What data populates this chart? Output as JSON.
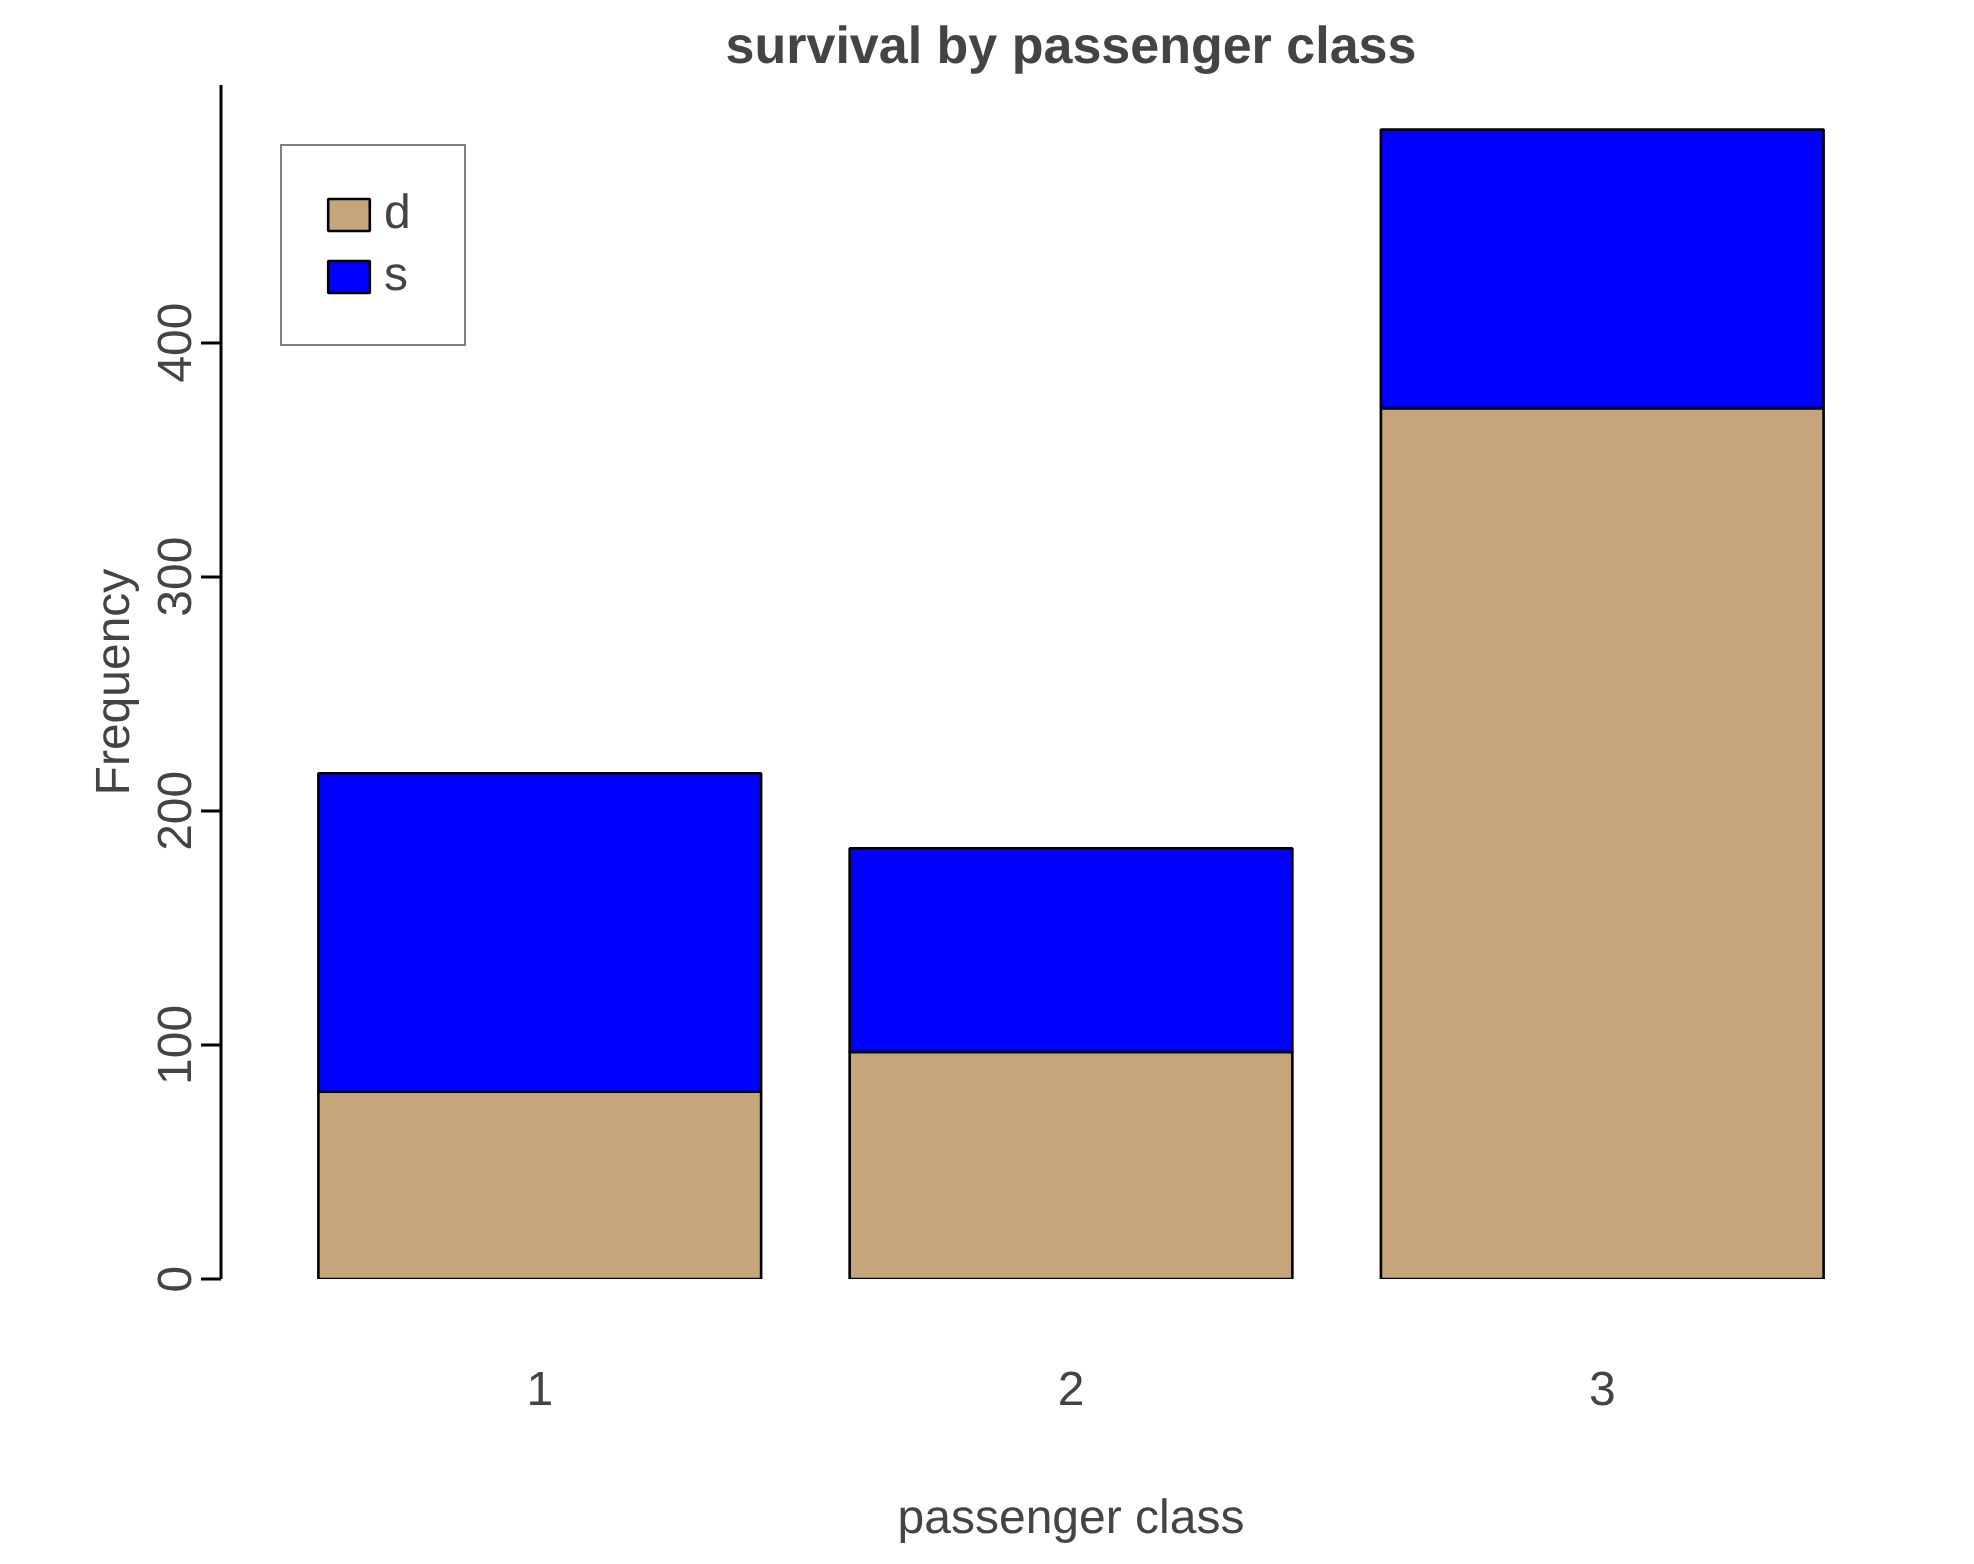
{
  "chart_data": {
    "type": "bar",
    "title": "survival by passenger class",
    "xlabel": "passenger class",
    "ylabel": "Frequency",
    "categories": [
      "1",
      "2",
      "3"
    ],
    "stacked": true,
    "ylim": [
      0,
      510
    ],
    "yticks": [
      0,
      100,
      200,
      300,
      400
    ],
    "legend": "top left",
    "series": [
      {
        "name": "d",
        "color": "#c6a57a",
        "values": [
          80,
          97,
          372
        ]
      },
      {
        "name": "s",
        "color": "#0000ff",
        "values": [
          136,
          87,
          119
        ]
      }
    ]
  }
}
